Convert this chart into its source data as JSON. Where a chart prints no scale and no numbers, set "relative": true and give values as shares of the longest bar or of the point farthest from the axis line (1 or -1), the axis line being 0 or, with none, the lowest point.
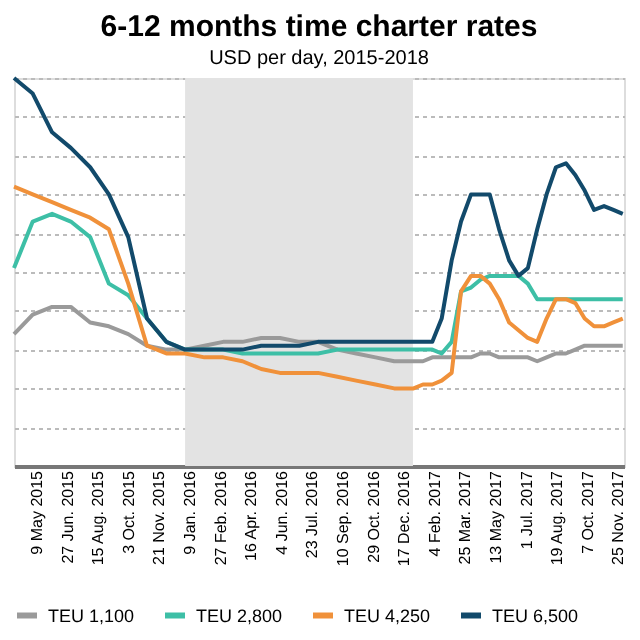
{
  "chart_data": {
    "type": "line",
    "title": "6-12 months time charter rates",
    "subtitle": "USD per day, 2015-2018",
    "x": [
      "2015-04-02",
      "2015-05-02",
      "2015-06-02",
      "2015-07-02",
      "2015-08-02",
      "2015-09-01",
      "2015-10-02",
      "2015-11-01",
      "2015-12-02",
      "2016-01-01",
      "2016-02-01",
      "2016-03-02",
      "2016-04-02",
      "2016-05-02",
      "2016-06-01",
      "2016-07-02",
      "2016-08-01",
      "2016-09-01",
      "2016-10-01",
      "2016-11-01",
      "2016-12-01",
      "2017-01-01",
      "2017-01-16",
      "2017-01-31",
      "2017-02-15",
      "2017-03-03",
      "2017-03-18",
      "2017-04-03",
      "2017-04-18",
      "2017-05-03",
      "2017-05-18",
      "2017-06-03",
      "2017-06-18",
      "2017-07-03",
      "2017-07-18",
      "2017-08-02",
      "2017-08-17",
      "2017-09-02",
      "2017-09-17",
      "2017-10-02",
      "2017-10-17",
      "2017-11-02",
      "2017-11-17",
      "2017-12-02"
    ],
    "xlim": [
      "2015-04-02",
      "2017-12-04"
    ],
    "xticks": [
      {
        "value": "2015-05-09",
        "label": "9 May 2015"
      },
      {
        "value": "2015-06-27",
        "label": "27 Jun. 2015"
      },
      {
        "value": "2015-08-15",
        "label": "15 Aug. 2015"
      },
      {
        "value": "2015-10-03",
        "label": "3 Oct. 2015"
      },
      {
        "value": "2015-11-21",
        "label": "21 Nov. 2015"
      },
      {
        "value": "2016-01-09",
        "label": "9 Jan. 2016"
      },
      {
        "value": "2016-02-27",
        "label": "27 Feb. 2016"
      },
      {
        "value": "2016-04-16",
        "label": "16 Apr. 2016"
      },
      {
        "value": "2016-06-04",
        "label": "4 Jun. 2016"
      },
      {
        "value": "2016-07-23",
        "label": "23 Jul. 2016"
      },
      {
        "value": "2016-09-10",
        "label": "10 Sep. 2016"
      },
      {
        "value": "2016-10-29",
        "label": "29 Oct. 2016"
      },
      {
        "value": "2016-12-17",
        "label": "17 Dec. 2016"
      },
      {
        "value": "2017-02-04",
        "label": "4 Feb. 2017"
      },
      {
        "value": "2017-03-25",
        "label": "25 Mar. 2017"
      },
      {
        "value": "2017-05-13",
        "label": "13 May 2017"
      },
      {
        "value": "2017-07-01",
        "label": "1 Jul. 2017"
      },
      {
        "value": "2017-08-19",
        "label": "19 Aug. 2017"
      },
      {
        "value": "2017-10-07",
        "label": "7 Oct. 2017"
      },
      {
        "value": "2017-11-25",
        "label": "25 Nov. 2017"
      }
    ],
    "relative": true,
    "grid": "y",
    "legend": "bottom",
    "line_style": "solid",
    "bands": [
      {
        "axis": "x",
        "from": "2016-01-01",
        "to": "2016-12-31",
        "color": "#e3e3e3"
      }
    ],
    "series": [
      {
        "name": "TEU 1,100",
        "color": "#9a9a9a",
        "values": [
          0.34,
          0.39,
          0.41,
          0.41,
          0.37,
          0.36,
          0.34,
          0.31,
          0.3,
          0.3,
          0.31,
          0.32,
          0.32,
          0.33,
          0.33,
          0.32,
          0.32,
          0.3,
          0.29,
          0.28,
          0.27,
          0.27,
          0.27,
          0.28,
          0.28,
          0.28,
          0.28,
          0.28,
          0.29,
          0.29,
          0.28,
          0.28,
          0.28,
          0.28,
          0.27,
          0.28,
          0.29,
          0.29,
          0.3,
          0.31,
          0.31,
          0.31,
          0.31,
          0.31
        ]
      },
      {
        "name": "TEU 2,800",
        "color": "#3dbfa6",
        "values": [
          0.51,
          0.63,
          0.65,
          0.63,
          0.59,
          0.47,
          0.44,
          0.38,
          0.32,
          0.3,
          0.3,
          0.3,
          0.29,
          0.29,
          0.29,
          0.29,
          0.29,
          0.3,
          0.3,
          0.3,
          0.3,
          0.3,
          0.3,
          0.3,
          0.29,
          0.32,
          0.45,
          0.46,
          0.48,
          0.49,
          0.49,
          0.49,
          0.49,
          0.47,
          0.43,
          0.43,
          0.43,
          0.43,
          0.43,
          0.43,
          0.43,
          0.43,
          0.43,
          0.43
        ]
      },
      {
        "name": "TEU 4,250",
        "color": "#f0913a",
        "values": [
          0.72,
          0.7,
          0.68,
          0.66,
          0.64,
          0.61,
          0.47,
          0.31,
          0.29,
          0.29,
          0.28,
          0.28,
          0.27,
          0.25,
          0.24,
          0.24,
          0.24,
          0.23,
          0.22,
          0.21,
          0.2,
          0.2,
          0.21,
          0.21,
          0.22,
          0.24,
          0.45,
          0.49,
          0.49,
          0.47,
          0.43,
          0.37,
          0.35,
          0.33,
          0.32,
          0.38,
          0.43,
          0.43,
          0.42,
          0.38,
          0.36,
          0.36,
          0.37,
          0.38
        ]
      },
      {
        "name": "TEU 6,500",
        "color": "#124a6b",
        "values": [
          1.0,
          0.96,
          0.86,
          0.82,
          0.77,
          0.7,
          0.59,
          0.38,
          0.32,
          0.3,
          0.3,
          0.3,
          0.3,
          0.31,
          0.31,
          0.31,
          0.32,
          0.32,
          0.32,
          0.32,
          0.32,
          0.32,
          0.32,
          0.32,
          0.38,
          0.53,
          0.63,
          0.7,
          0.7,
          0.7,
          0.61,
          0.53,
          0.49,
          0.51,
          0.61,
          0.7,
          0.77,
          0.78,
          0.75,
          0.71,
          0.66,
          0.67,
          0.66,
          0.65
        ]
      }
    ]
  }
}
